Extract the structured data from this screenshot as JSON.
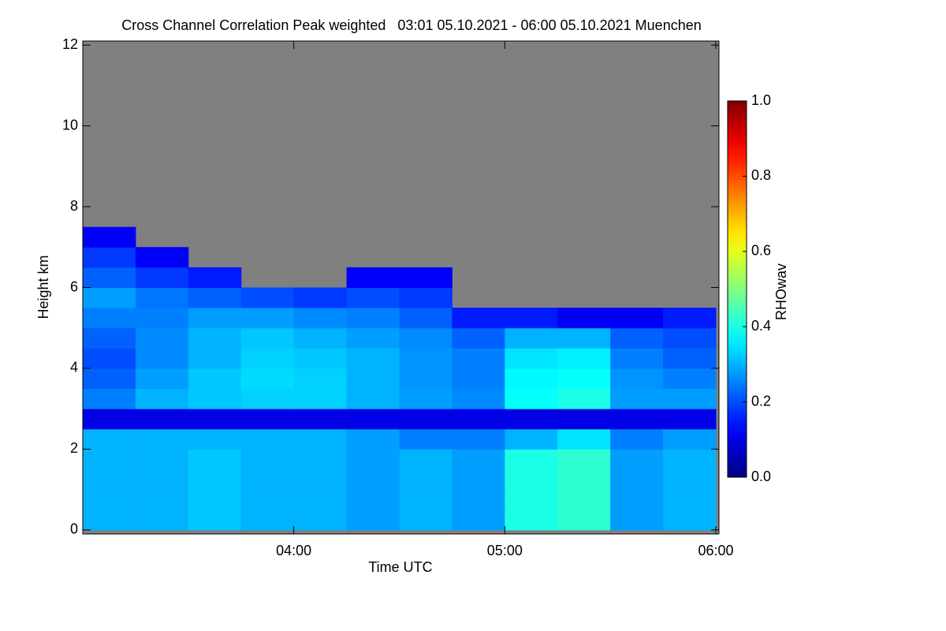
{
  "chart_data": {
    "type": "heatmap",
    "title": "Cross Channel Correlation Peak weighted   03:01 05.10.2021 - 06:00 05.10.2021 Muenchen",
    "xlabel": "Time UTC",
    "ylabel": "Height km",
    "colorbar_label": "RHOwav",
    "xlim": [
      3.0,
      6.015
    ],
    "xticks": [
      {
        "value": 4,
        "label": "04:00"
      },
      {
        "value": 5,
        "label": "05:00"
      },
      {
        "value": 6,
        "label": "06:00"
      }
    ],
    "ylim": [
      -0.1,
      12.1
    ],
    "yticks": [
      0,
      2,
      4,
      6,
      8,
      10,
      12
    ],
    "clim": [
      0,
      1
    ],
    "cticks": [
      {
        "value": 0,
        "label": "0.0"
      },
      0.2,
      0.4,
      0.6,
      0.8,
      {
        "value": 1,
        "label": "1.0"
      }
    ],
    "colormap": "jet",
    "nodata_color": "#808080",
    "xbins": [
      3.0,
      3.25,
      3.5,
      3.75,
      4.0,
      4.25,
      4.5,
      4.75,
      5.0,
      5.25,
      5.5,
      5.75,
      6.0
    ],
    "ybins": [
      0,
      0.5,
      1,
      1.5,
      2,
      2.5,
      3,
      3.5,
      4,
      4.5,
      5,
      5.5,
      6,
      6.5,
      7,
      7.5,
      8
    ],
    "z": [
      [
        0.3,
        0.3,
        0.32,
        0.3,
        0.3,
        0.28,
        0.3,
        0.28,
        0.4,
        0.42,
        0.28,
        0.3
      ],
      [
        0.3,
        0.3,
        0.32,
        0.3,
        0.3,
        0.28,
        0.3,
        0.28,
        0.4,
        0.42,
        0.28,
        0.3
      ],
      [
        0.3,
        0.3,
        0.32,
        0.3,
        0.3,
        0.28,
        0.3,
        0.28,
        0.4,
        0.42,
        0.28,
        0.3
      ],
      [
        0.3,
        0.3,
        0.32,
        0.3,
        0.3,
        0.28,
        0.3,
        0.28,
        0.4,
        0.42,
        0.28,
        0.3
      ],
      [
        0.3,
        0.3,
        0.3,
        0.3,
        0.3,
        0.28,
        0.25,
        0.25,
        0.3,
        0.35,
        0.25,
        0.28
      ],
      [
        0.1,
        0.1,
        0.1,
        0.1,
        0.1,
        0.1,
        0.1,
        0.1,
        0.1,
        0.1,
        0.1,
        0.1
      ],
      [
        0.25,
        0.3,
        0.32,
        0.33,
        0.33,
        0.3,
        0.28,
        0.26,
        0.38,
        0.4,
        0.28,
        0.28
      ],
      [
        0.22,
        0.28,
        0.32,
        0.34,
        0.33,
        0.3,
        0.27,
        0.25,
        0.37,
        0.38,
        0.27,
        0.25
      ],
      [
        0.2,
        0.26,
        0.3,
        0.33,
        0.32,
        0.3,
        0.27,
        0.25,
        0.35,
        0.36,
        0.25,
        0.22
      ],
      [
        0.22,
        0.26,
        0.3,
        0.32,
        0.3,
        0.28,
        0.26,
        0.22,
        0.3,
        0.3,
        0.22,
        0.2
      ],
      [
        0.25,
        0.25,
        0.28,
        0.28,
        0.26,
        0.25,
        0.22,
        0.15,
        0.15,
        0.12,
        0.12,
        0.15
      ],
      [
        0.28,
        0.24,
        0.22,
        0.2,
        0.18,
        0.2,
        0.18,
        null,
        null,
        null,
        null,
        null
      ],
      [
        0.22,
        0.18,
        0.15,
        null,
        null,
        0.12,
        0.12,
        null,
        null,
        null,
        null,
        null
      ],
      [
        0.18,
        0.12,
        null,
        null,
        null,
        null,
        null,
        null,
        null,
        null,
        null,
        null
      ],
      [
        0.12,
        null,
        null,
        null,
        null,
        null,
        null,
        null,
        null,
        null,
        null,
        null
      ],
      [
        null,
        null,
        null,
        null,
        null,
        null,
        null,
        null,
        null,
        null,
        null,
        null
      ]
    ]
  }
}
